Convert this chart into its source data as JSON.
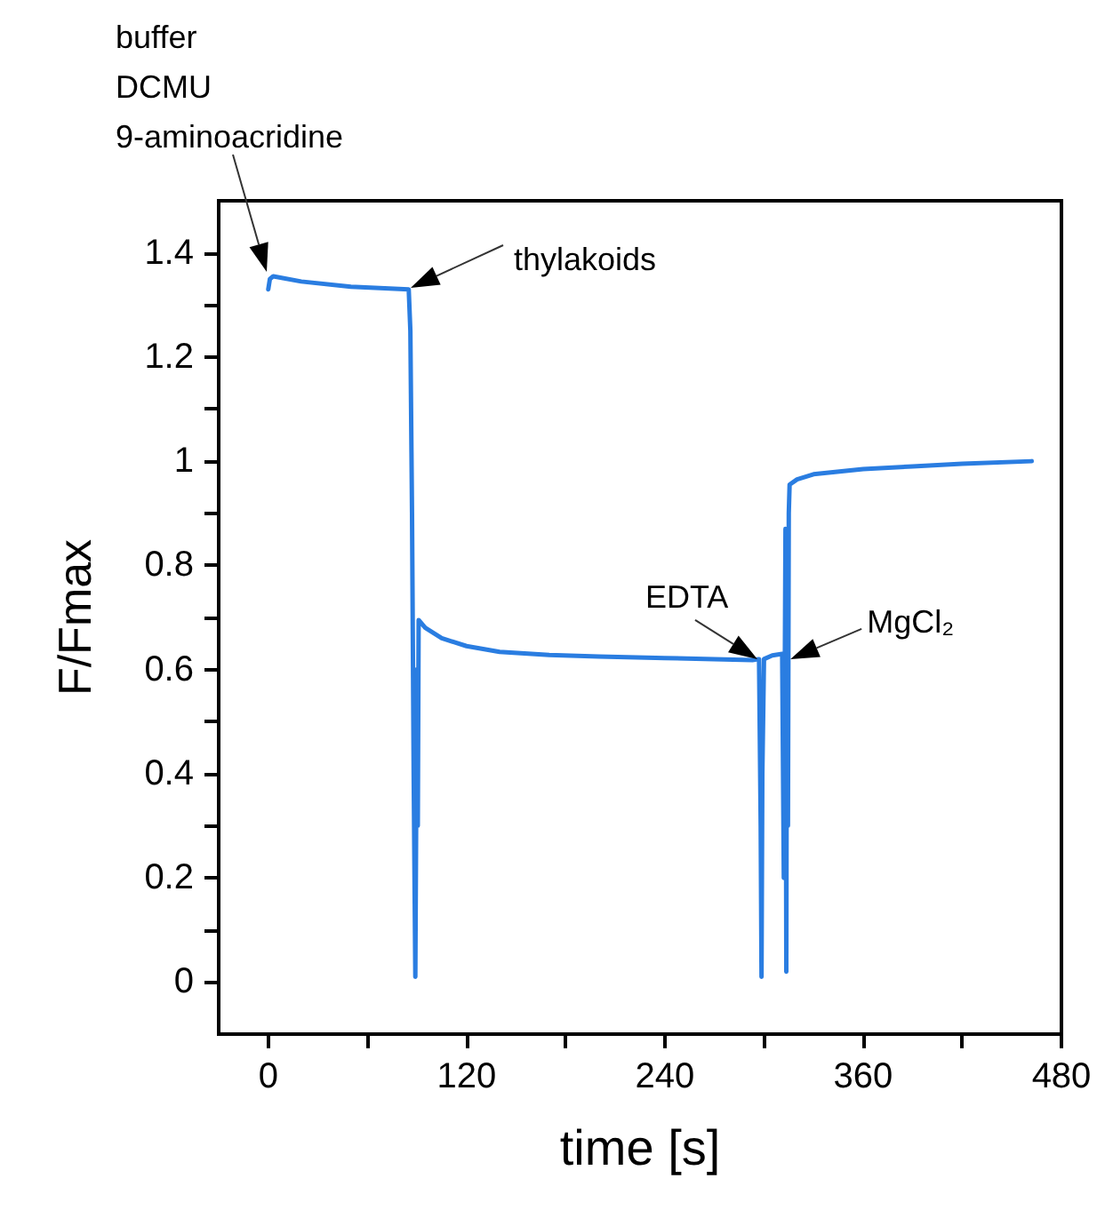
{
  "chart_data": {
    "type": "line",
    "xlabel": "time [s]",
    "ylabel": "F/Fmax",
    "xlim": [
      -30,
      480
    ],
    "xticks": [
      0,
      {
        "value": 60,
        "label": null
      },
      120,
      {
        "value": 180,
        "label": null
      },
      240,
      {
        "value": 300,
        "label": null
      },
      360,
      {
        "value": 420,
        "label": null
      },
      480
    ],
    "ylim": [
      -0.1,
      1.5
    ],
    "yticks": [
      0,
      {
        "value": 0.1,
        "label": null
      },
      0.2,
      {
        "value": 0.3,
        "label": null
      },
      0.4,
      {
        "value": 0.5,
        "label": null
      },
      0.6,
      {
        "value": 0.7,
        "label": null
      },
      0.8,
      {
        "value": 0.9,
        "label": null
      },
      1,
      {
        "value": 1.1,
        "label": null
      },
      1.2,
      {
        "value": 1.3,
        "label": null
      },
      1.4
    ],
    "grid": false,
    "marker": "none",
    "line_style": "solid",
    "annotations": [
      "buffer\nDCMU\n9-aminoacridine",
      "thylakoids",
      {
        "text": "EDTA",
        "x": 296,
        "y": 0.62
      },
      {
        "text": "MgCl₂",
        "x": 316,
        "y": 0.62
      }
    ],
    "series": [
      {
        "color": "#2a7de1",
        "x": [
          0,
          1,
          3,
          20,
          50,
          85,
          86,
          87,
          88,
          89,
          90,
          90.5,
          91,
          95,
          105,
          120,
          140,
          170,
          200,
          240,
          270,
          293,
          297,
          298,
          298.5,
          299,
          300,
          305,
          311,
          312,
          313,
          313.5,
          314,
          314.5,
          315,
          315.5,
          320,
          330,
          360,
          390,
          420,
          462
        ],
        "values": [
          1.33,
          1.35,
          1.355,
          1.345,
          1.335,
          1.33,
          1.25,
          0.9,
          0.4,
          0.01,
          0.6,
          0.3,
          0.695,
          0.68,
          0.66,
          0.645,
          0.634,
          0.628,
          0.625,
          0.622,
          0.62,
          0.618,
          0.62,
          0.3,
          0.01,
          0.4,
          0.62,
          0.627,
          0.63,
          0.2,
          0.87,
          0.02,
          0.87,
          0.3,
          0.9,
          0.955,
          0.965,
          0.975,
          0.985,
          0.99,
          0.995,
          1.0
        ]
      }
    ]
  }
}
